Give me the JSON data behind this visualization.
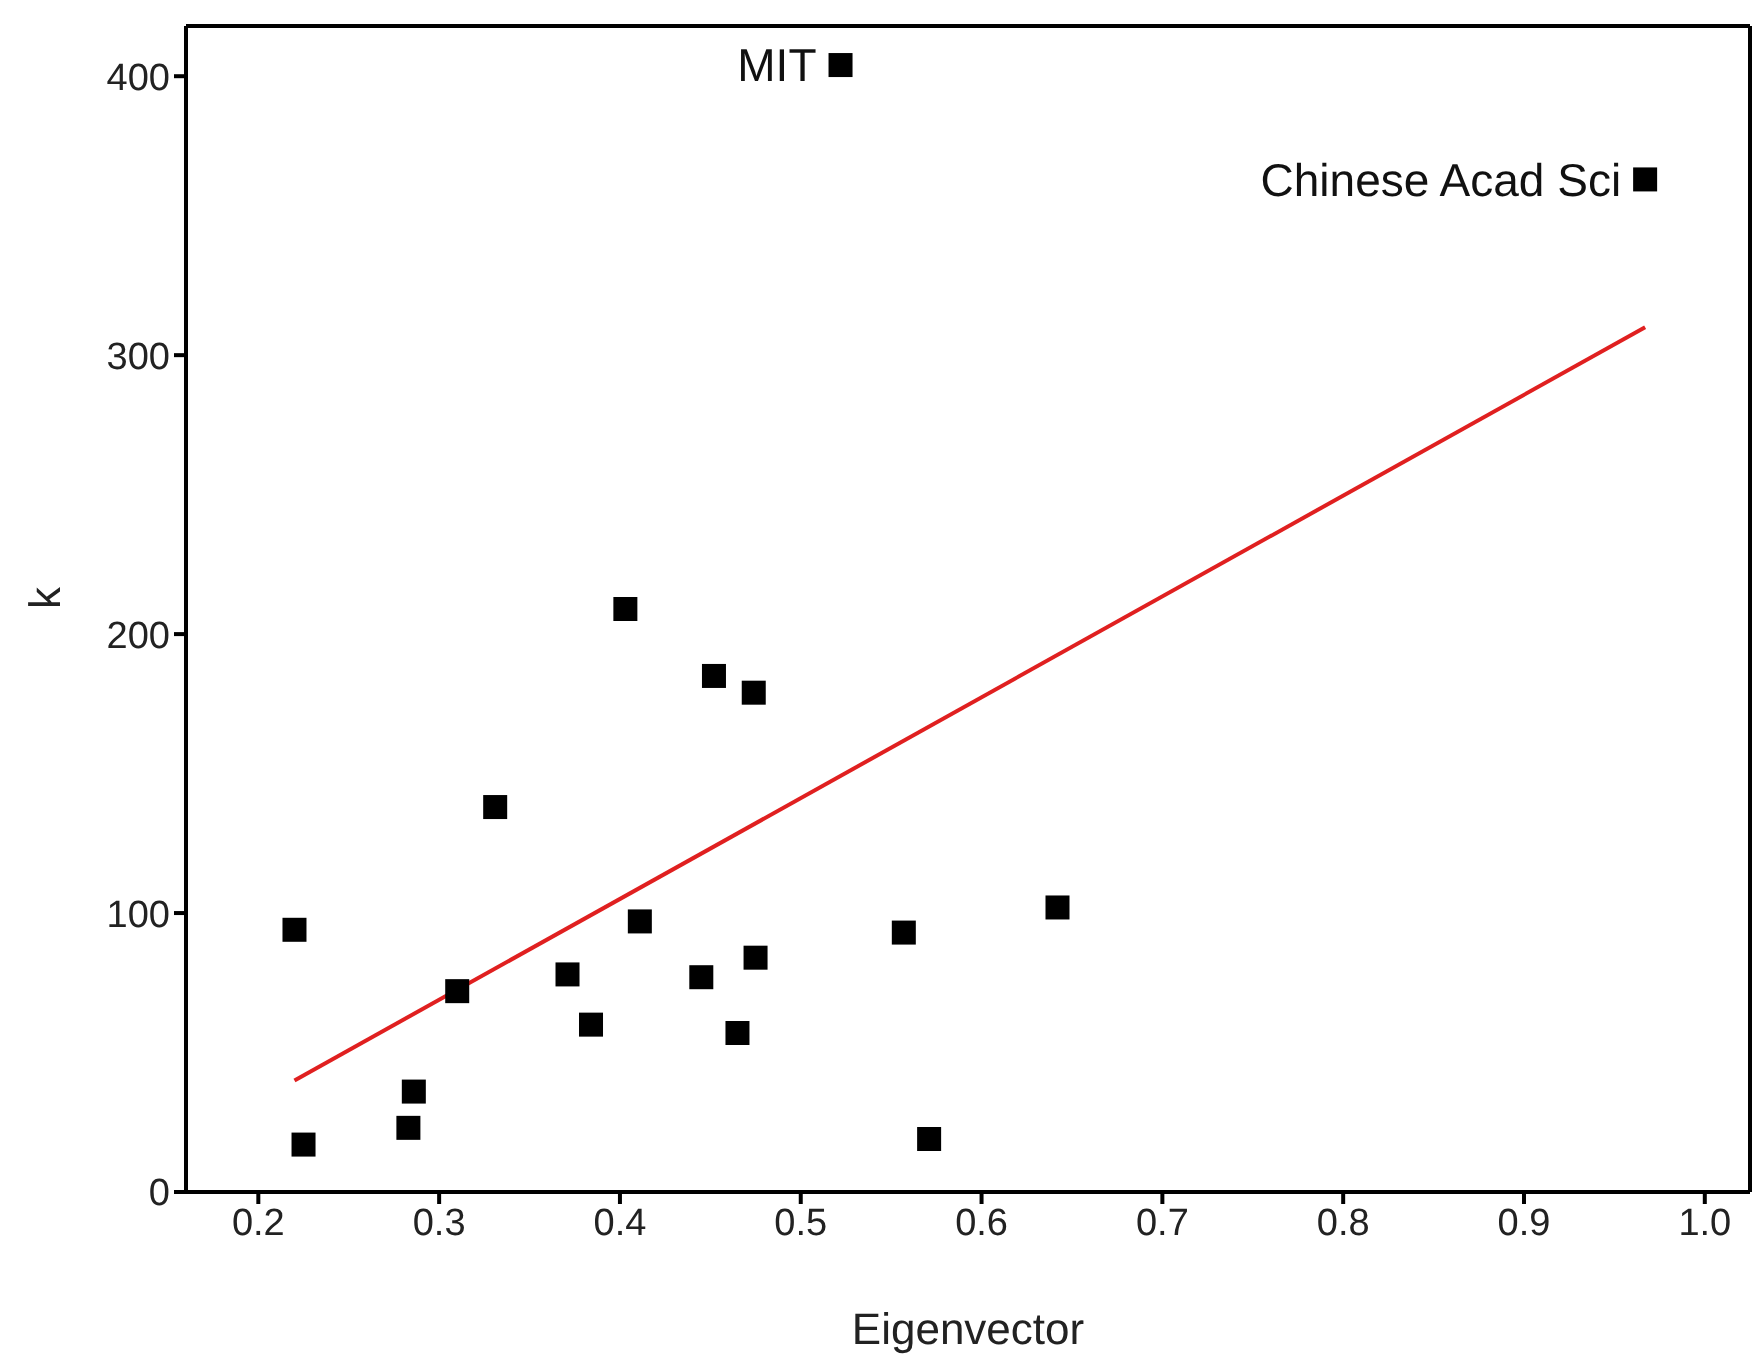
{
  "chart_data": {
    "type": "scatter",
    "xlabel": "Eigenvector",
    "ylabel": "k",
    "xlim": [
      0.16,
      1.025
    ],
    "ylim": [
      0,
      418
    ],
    "xticks": [
      0.2,
      0.3,
      0.4,
      0.5,
      0.6,
      0.7,
      0.8,
      0.9,
      {
        "value": 1,
        "label": "1.0"
      }
    ],
    "yticks": [
      0,
      100,
      200,
      300,
      400
    ],
    "legend": false,
    "series": [
      {
        "color": "#000000",
        "marker": "square",
        "x": [
          0.22,
          0.225,
          0.283,
          0.286,
          0.31,
          0.331,
          0.371,
          0.384,
          0.403,
          0.411,
          0.445,
          0.452,
          0.465,
          0.474,
          0.475,
          0.557,
          0.571,
          0.642,
          0.522,
          0.967
        ],
        "values": [
          94,
          17,
          23,
          36,
          72,
          138,
          78,
          60,
          209,
          97,
          77,
          185,
          57,
          179,
          84,
          93,
          19,
          102,
          404,
          363
        ]
      },
      {
        "type": "line",
        "color": "#e02020",
        "marker": "none",
        "line_style": "solid",
        "x": [
          0.22,
          0.967
        ],
        "values": [
          40,
          310
        ]
      }
    ],
    "annotations": [
      {
        "text": "MIT",
        "x": 0.522,
        "y": 404
      },
      {
        "text": "Chinese Acad Sci",
        "x": 0.967,
        "y": 363
      }
    ]
  }
}
